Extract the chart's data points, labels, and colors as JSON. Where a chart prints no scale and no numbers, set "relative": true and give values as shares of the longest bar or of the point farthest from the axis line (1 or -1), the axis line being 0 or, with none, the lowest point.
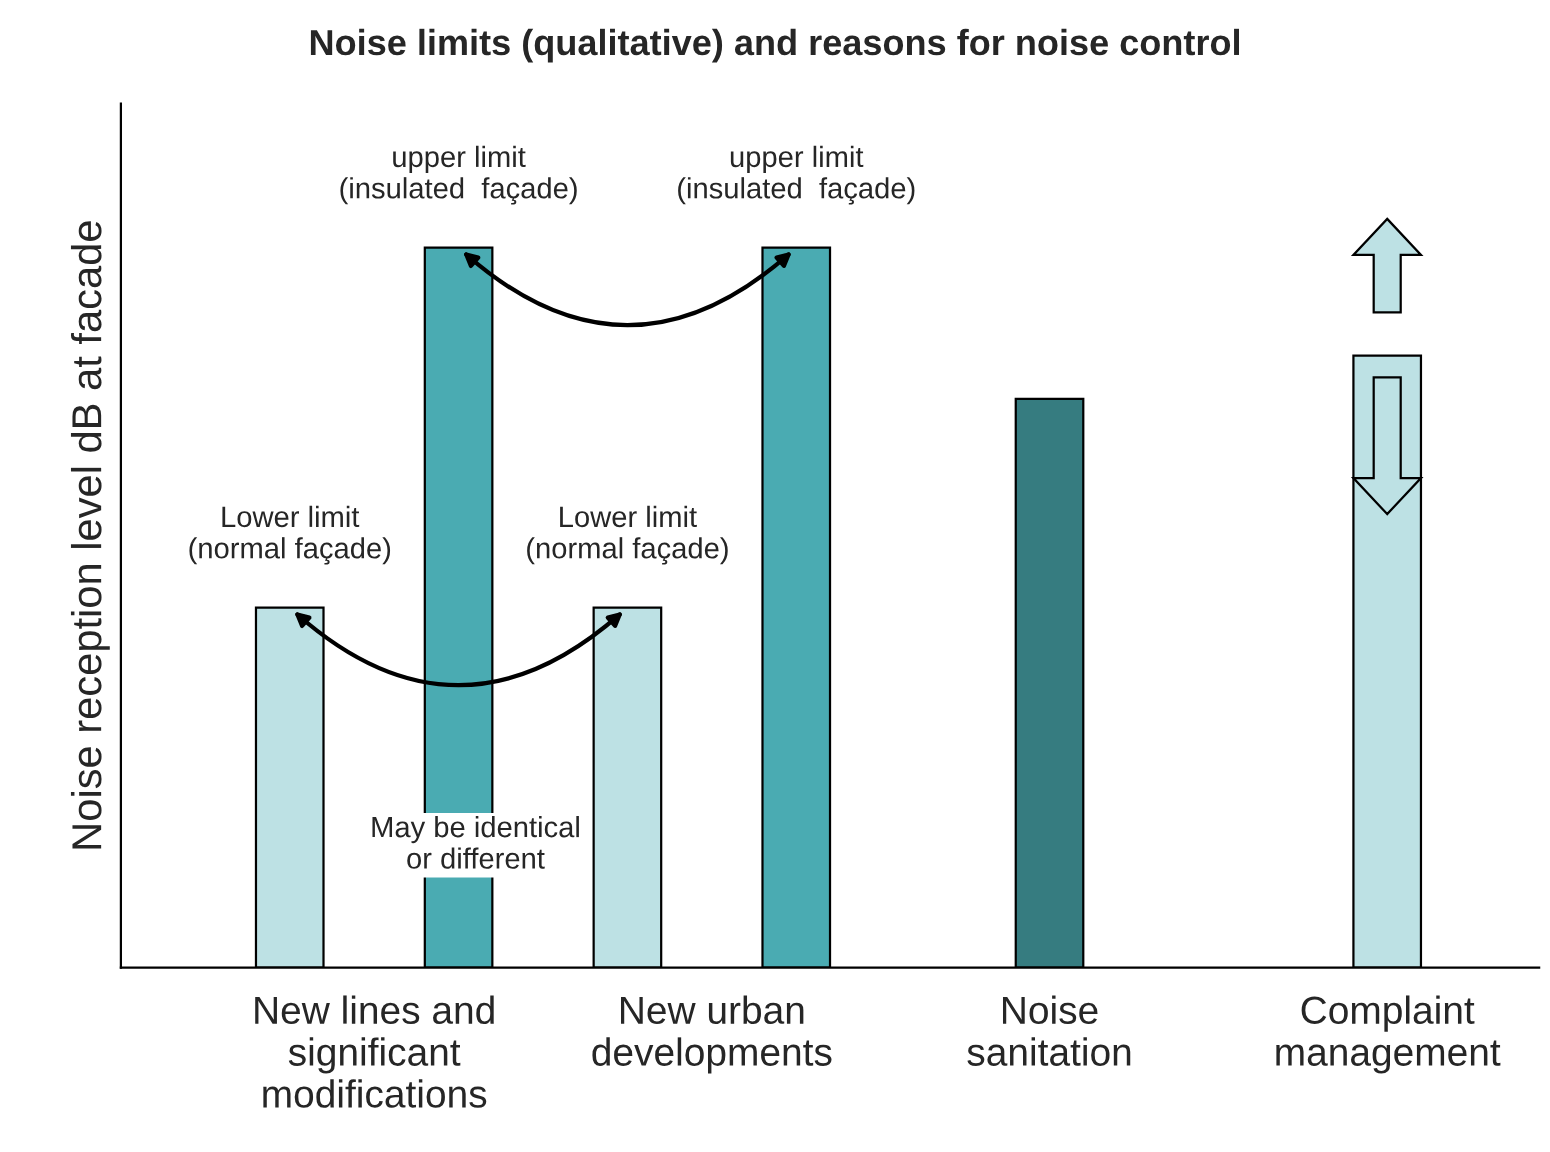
{
  "chart_data": {
    "type": "bar",
    "title": "Noise limits (qualitative) and reasons for noise control",
    "ylabel": "Noise reception level dB at facade",
    "categories": [
      "New lines and\nsignificant\nmodifications",
      "New urban\ndevelopments",
      "Noise\nsanitation",
      "Complaint\nmanagement"
    ],
    "relative": true,
    "series": [
      {
        "color": "#bde1e4",
        "values": [
          0.5,
          0.5,
          null,
          0.85
        ]
      },
      {
        "color": "#4aabb2",
        "values": [
          1,
          1,
          null,
          null
        ]
      },
      {
        "color": "#367c80",
        "values": [
          null,
          null,
          0.79,
          null
        ]
      }
    ],
    "annotations": [
      "Lower limit\n(normal façade)",
      "upper limit\n(insulated  façade)",
      "Lower limit\n(normal façade)",
      "upper limit\n(insulated  façade)",
      "May be identical\nor different"
    ]
  }
}
